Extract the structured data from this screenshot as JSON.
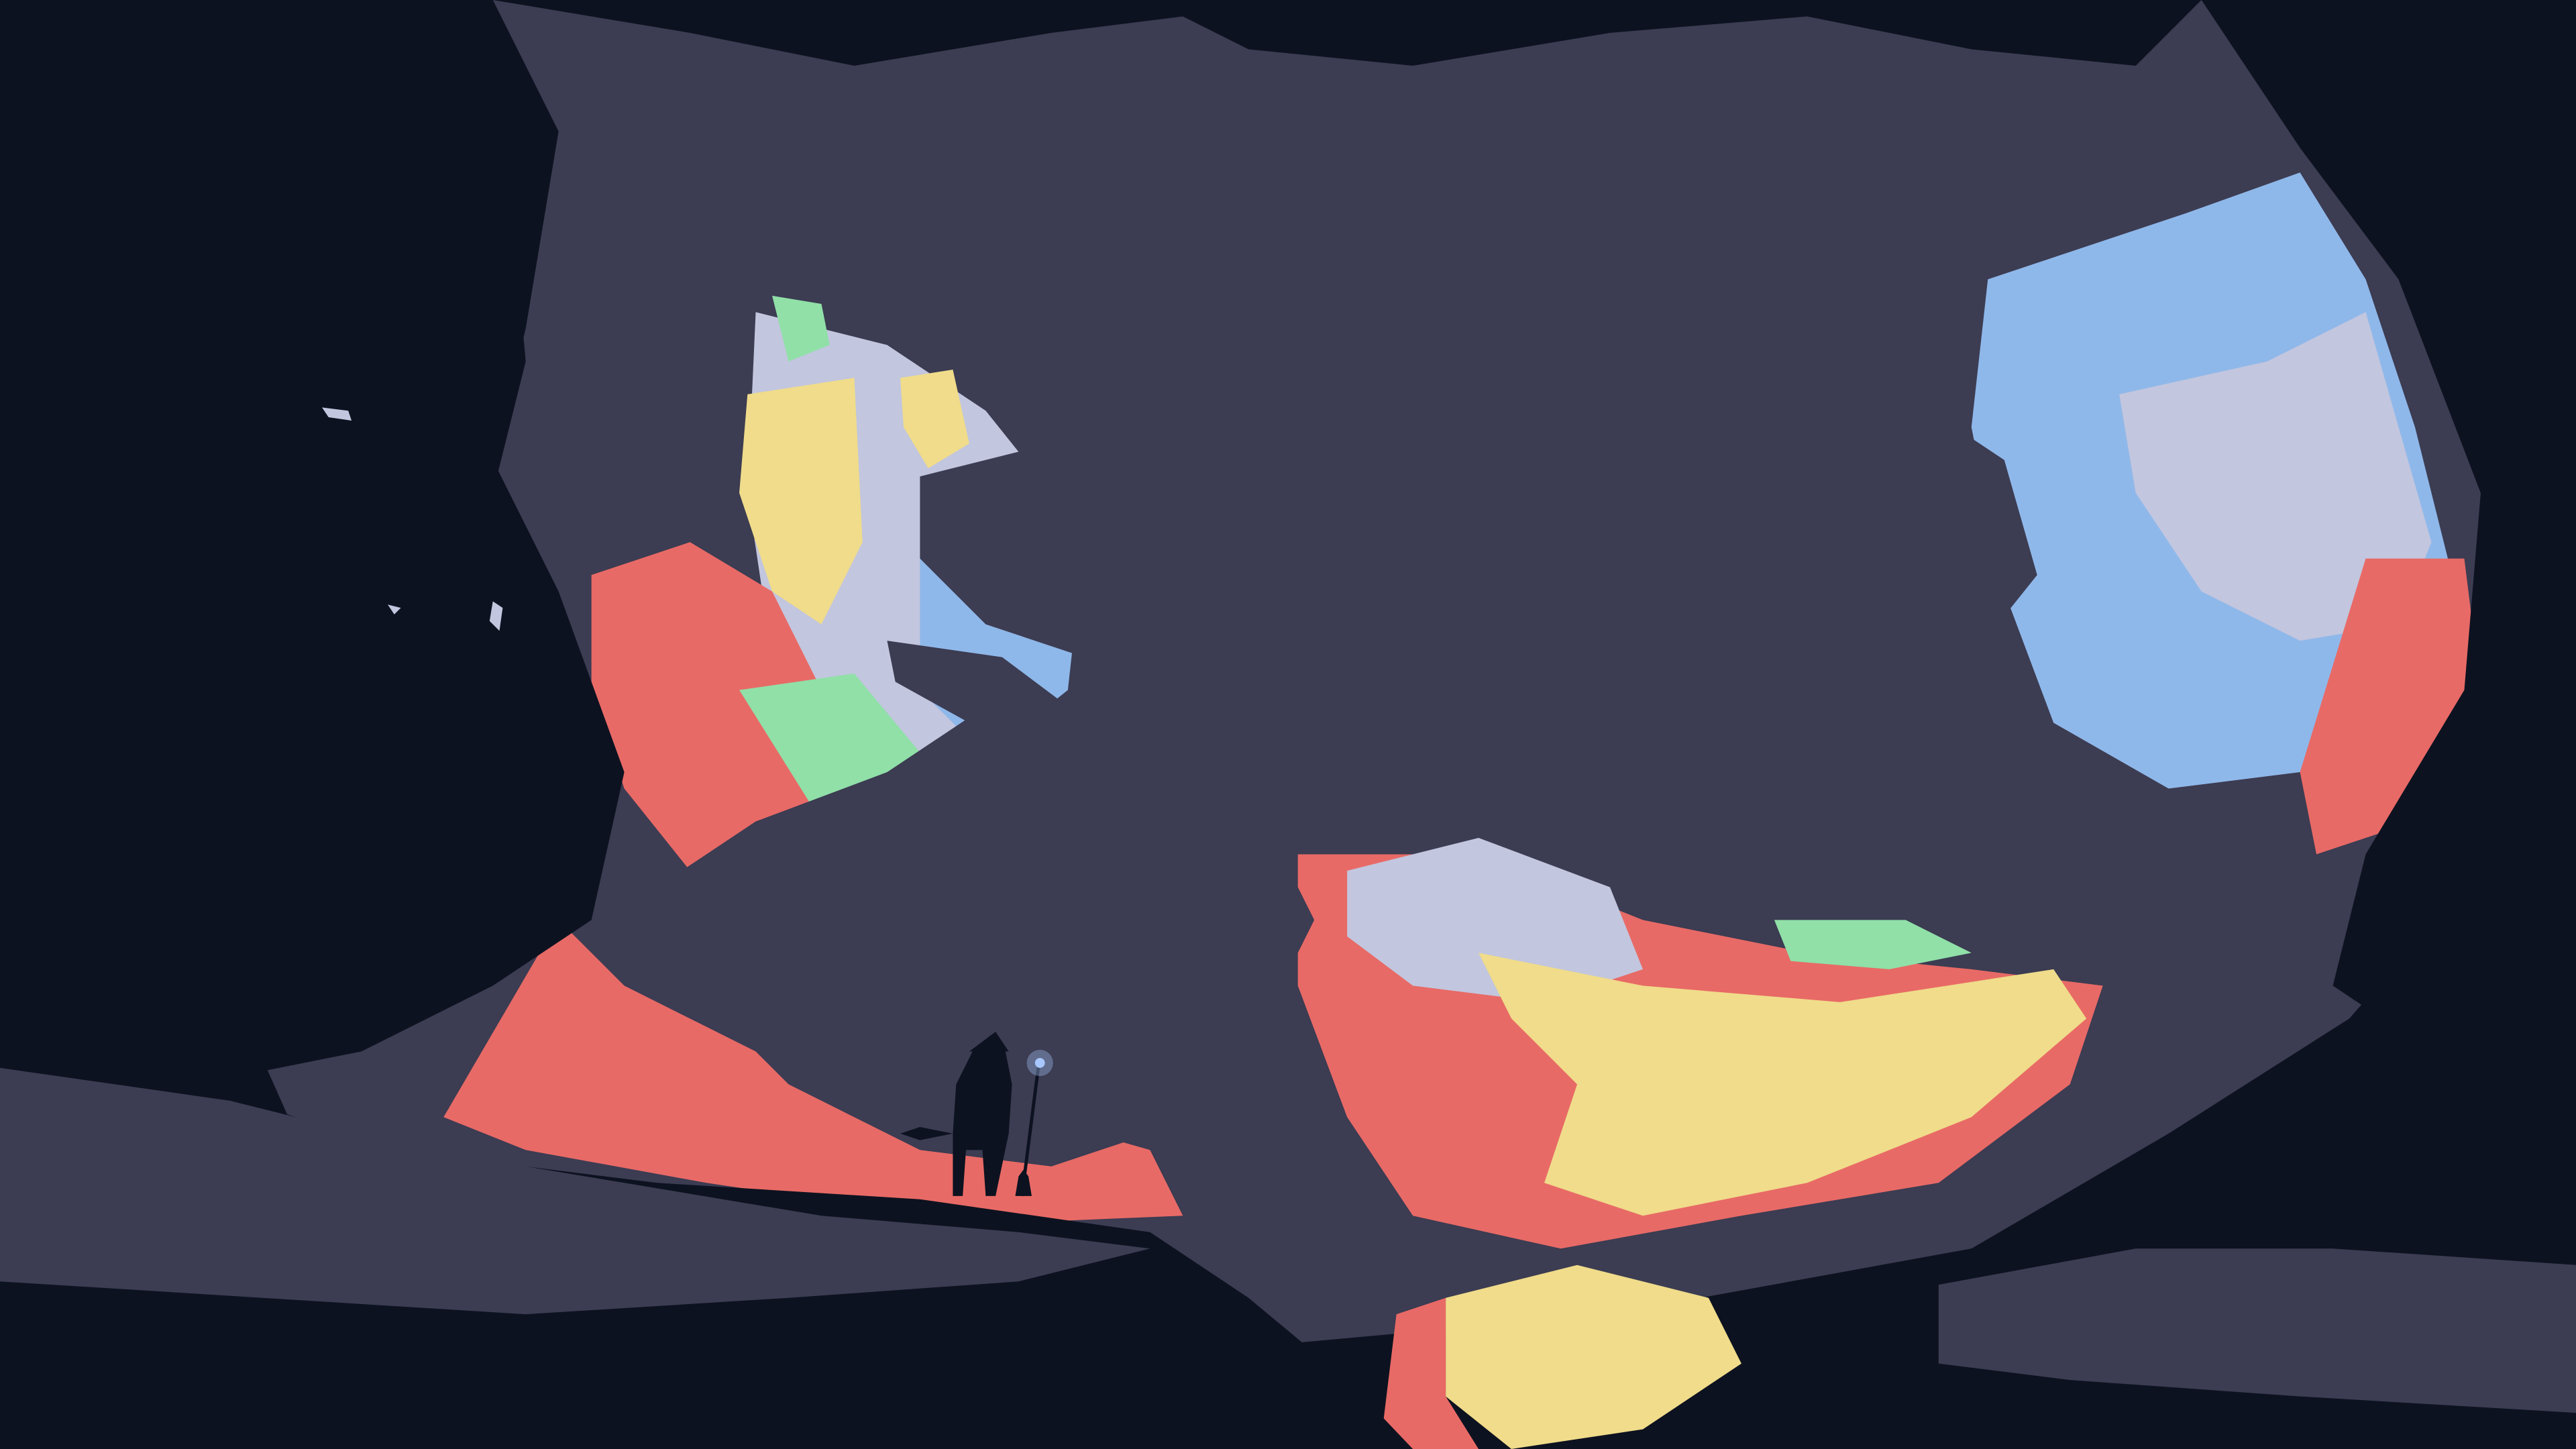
{
  "scene": {
    "description_free": true,
    "palette": {
      "void": "#0d1220",
      "slate": "#3c3c52",
      "sky_blue": "#8fb8ea",
      "lavender": "#c2c6de",
      "coral": "#e86a66",
      "sun_yellow": "#f0dc8a",
      "mint": "#90e0a8",
      "wisp": "#a8c8ff"
    },
    "motifs": [
      "cave-mouth",
      "giant-tree",
      "wanderer-silhouette",
      "staff-glow",
      "cat-silhouette",
      "sunlit-valley"
    ]
  }
}
